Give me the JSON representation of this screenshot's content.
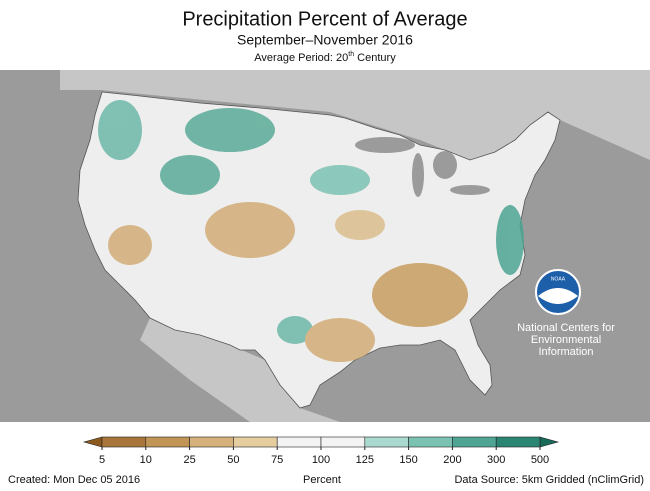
{
  "header": {
    "title": "Precipitation Percent of Average",
    "subtitle": "September–November 2016",
    "average_period": [
      "Average Period: 20",
      "th",
      " Century"
    ]
  },
  "legend": {
    "ticks": [
      5,
      10,
      25,
      50,
      75,
      100,
      125,
      150,
      200,
      300,
      500
    ],
    "label": "Percent",
    "below_color": "#8c5a1e",
    "above_color": "#1a6a5a",
    "colors": [
      "#a8753a",
      "#c19556",
      "#d5b27b",
      "#e6cda0",
      "#f3f3f3",
      "#f3f3f3",
      "#a9d9cf",
      "#7bc2b3",
      "#4ea593",
      "#2b8573"
    ]
  },
  "logo": {
    "name": "NOAA",
    "lines": [
      "National Centers for",
      "Environmental",
      "Information"
    ]
  },
  "footer": {
    "created": "Created: Mon Dec 05 2016",
    "source": "Data Source: 5km Gridded (nClimGrid)"
  }
}
